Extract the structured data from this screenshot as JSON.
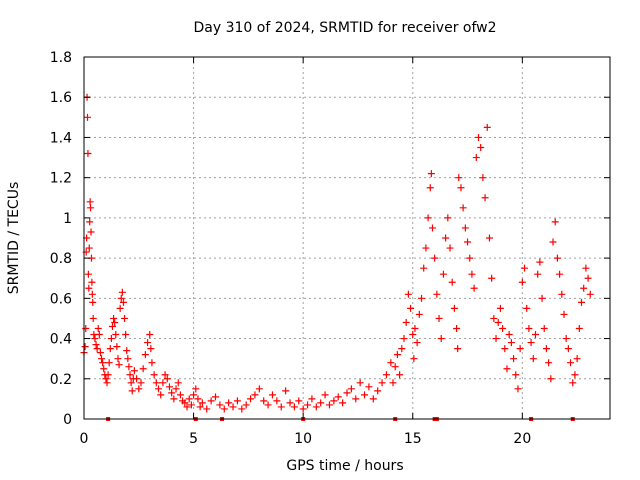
{
  "chart_data": {
    "type": "scatter",
    "title": "Day 310 of 2024, SRMTID for receiver ofw2",
    "xlabel": "GPS time / hours",
    "ylabel": "SRMTID / TECUs",
    "xlim": [
      0,
      24
    ],
    "ylim": [
      0,
      1.8
    ],
    "x_ticks": [
      0,
      5,
      10,
      15,
      20
    ],
    "y_ticks": [
      0,
      0.2,
      0.4,
      0.6,
      0.8,
      1,
      1.2,
      1.4,
      1.6,
      1.8
    ],
    "x_tick_labels": [
      "0",
      "5",
      "10",
      "15",
      "20"
    ],
    "y_tick_labels": [
      "0",
      "0.2",
      "0.4",
      "0.6",
      "0.8",
      "1",
      "1.2",
      "1.4",
      "1.6",
      "1.8"
    ],
    "grid": true,
    "marker": "+",
    "series_color": "#ff0000",
    "series": [
      {
        "name": "SRMTID",
        "points": [
          [
            0.0,
            0.33
          ],
          [
            0.05,
            0.36
          ],
          [
            0.08,
            0.45
          ],
          [
            0.1,
            0.83
          ],
          [
            0.12,
            0.9
          ],
          [
            0.14,
            1.6
          ],
          [
            0.16,
            1.5
          ],
          [
            0.18,
            1.32
          ],
          [
            0.2,
            0.72
          ],
          [
            0.22,
            0.65
          ],
          [
            0.24,
            0.85
          ],
          [
            0.26,
            0.98
          ],
          [
            0.28,
            1.08
          ],
          [
            0.3,
            1.05
          ],
          [
            0.32,
            0.93
          ],
          [
            0.34,
            0.8
          ],
          [
            0.36,
            0.68
          ],
          [
            0.38,
            0.62
          ],
          [
            0.4,
            0.58
          ],
          [
            0.42,
            0.5
          ],
          [
            0.45,
            0.42
          ],
          [
            0.5,
            0.4
          ],
          [
            0.55,
            0.37
          ],
          [
            0.6,
            0.35
          ],
          [
            0.65,
            0.45
          ],
          [
            0.7,
            0.42
          ],
          [
            0.75,
            0.33
          ],
          [
            0.8,
            0.3
          ],
          [
            0.85,
            0.28
          ],
          [
            0.9,
            0.25
          ],
          [
            0.95,
            0.22
          ],
          [
            1.0,
            0.2
          ],
          [
            1.05,
            0.18
          ],
          [
            1.1,
            0.22
          ],
          [
            1.15,
            0.28
          ],
          [
            1.2,
            0.35
          ],
          [
            1.25,
            0.4
          ],
          [
            1.3,
            0.46
          ],
          [
            1.35,
            0.5
          ],
          [
            1.4,
            0.48
          ],
          [
            1.45,
            0.42
          ],
          [
            1.5,
            0.36
          ],
          [
            1.55,
            0.3
          ],
          [
            1.6,
            0.27
          ],
          [
            1.65,
            0.55
          ],
          [
            1.7,
            0.6
          ],
          [
            1.75,
            0.63
          ],
          [
            1.8,
            0.58
          ],
          [
            1.85,
            0.5
          ],
          [
            1.9,
            0.42
          ],
          [
            1.95,
            0.34
          ],
          [
            2.0,
            0.3
          ],
          [
            2.05,
            0.26
          ],
          [
            2.1,
            0.22
          ],
          [
            2.15,
            0.18
          ],
          [
            2.2,
            0.14
          ],
          [
            2.25,
            0.2
          ],
          [
            2.3,
            0.24
          ],
          [
            2.4,
            0.2
          ],
          [
            2.5,
            0.15
          ],
          [
            2.6,
            0.18
          ],
          [
            2.7,
            0.25
          ],
          [
            2.8,
            0.32
          ],
          [
            2.9,
            0.38
          ],
          [
            3.0,
            0.42
          ],
          [
            3.05,
            0.35
          ],
          [
            3.1,
            0.28
          ],
          [
            3.2,
            0.22
          ],
          [
            3.3,
            0.18
          ],
          [
            3.4,
            0.15
          ],
          [
            3.5,
            0.12
          ],
          [
            3.6,
            0.18
          ],
          [
            3.7,
            0.22
          ],
          [
            3.8,
            0.2
          ],
          [
            3.9,
            0.16
          ],
          [
            4.0,
            0.13
          ],
          [
            4.1,
            0.1
          ],
          [
            4.2,
            0.15
          ],
          [
            4.3,
            0.18
          ],
          [
            4.4,
            0.12
          ],
          [
            4.5,
            0.09
          ],
          [
            4.6,
            0.08
          ],
          [
            4.7,
            0.06
          ],
          [
            4.8,
            0.1
          ],
          [
            4.9,
            0.07
          ],
          [
            5.0,
            0.12
          ],
          [
            5.1,
            0.15
          ],
          [
            5.2,
            0.1
          ],
          [
            5.3,
            0.06
          ],
          [
            5.4,
            0.08
          ],
          [
            5.6,
            0.05
          ],
          [
            5.8,
            0.09
          ],
          [
            6.0,
            0.11
          ],
          [
            6.2,
            0.07
          ],
          [
            6.4,
            0.05
          ],
          [
            6.6,
            0.08
          ],
          [
            6.8,
            0.06
          ],
          [
            7.0,
            0.09
          ],
          [
            7.2,
            0.05
          ],
          [
            7.4,
            0.07
          ],
          [
            7.6,
            0.1
          ],
          [
            7.8,
            0.12
          ],
          [
            8.0,
            0.15
          ],
          [
            8.2,
            0.09
          ],
          [
            8.4,
            0.07
          ],
          [
            8.6,
            0.12
          ],
          [
            8.8,
            0.09
          ],
          [
            9.0,
            0.06
          ],
          [
            9.2,
            0.14
          ],
          [
            9.4,
            0.08
          ],
          [
            9.6,
            0.06
          ],
          [
            9.8,
            0.09
          ],
          [
            10.0,
            0.05
          ],
          [
            10.2,
            0.07
          ],
          [
            10.4,
            0.1
          ],
          [
            10.6,
            0.06
          ],
          [
            10.8,
            0.08
          ],
          [
            11.0,
            0.12
          ],
          [
            11.2,
            0.07
          ],
          [
            11.4,
            0.09
          ],
          [
            11.6,
            0.11
          ],
          [
            11.8,
            0.08
          ],
          [
            12.0,
            0.13
          ],
          [
            12.2,
            0.15
          ],
          [
            12.4,
            0.1
          ],
          [
            12.6,
            0.18
          ],
          [
            12.8,
            0.12
          ],
          [
            13.0,
            0.16
          ],
          [
            13.2,
            0.1
          ],
          [
            13.4,
            0.14
          ],
          [
            13.6,
            0.18
          ],
          [
            13.8,
            0.22
          ],
          [
            14.0,
            0.28
          ],
          [
            14.1,
            0.18
          ],
          [
            14.2,
            0.26
          ],
          [
            14.3,
            0.32
          ],
          [
            14.4,
            0.22
          ],
          [
            14.5,
            0.35
          ],
          [
            14.6,
            0.4
          ],
          [
            14.7,
            0.48
          ],
          [
            14.8,
            0.62
          ],
          [
            14.9,
            0.55
          ],
          [
            15.0,
            0.42
          ],
          [
            15.05,
            0.3
          ],
          [
            15.1,
            0.45
          ],
          [
            15.2,
            0.38
          ],
          [
            15.3,
            0.52
          ],
          [
            15.4,
            0.6
          ],
          [
            15.5,
            0.75
          ],
          [
            15.6,
            0.85
          ],
          [
            15.7,
            1.0
          ],
          [
            15.8,
            1.15
          ],
          [
            15.85,
            1.22
          ],
          [
            15.9,
            0.95
          ],
          [
            16.0,
            0.8
          ],
          [
            16.1,
            0.62
          ],
          [
            16.2,
            0.5
          ],
          [
            16.3,
            0.4
          ],
          [
            16.4,
            0.72
          ],
          [
            16.5,
            0.9
          ],
          [
            16.6,
            1.0
          ],
          [
            16.7,
            0.85
          ],
          [
            16.8,
            0.68
          ],
          [
            16.9,
            0.55
          ],
          [
            17.0,
            0.45
          ],
          [
            17.05,
            0.35
          ],
          [
            17.1,
            1.2
          ],
          [
            17.2,
            1.15
          ],
          [
            17.3,
            1.05
          ],
          [
            17.4,
            0.95
          ],
          [
            17.5,
            0.88
          ],
          [
            17.6,
            0.8
          ],
          [
            17.7,
            0.72
          ],
          [
            17.8,
            0.65
          ],
          [
            17.9,
            1.3
          ],
          [
            18.0,
            1.4
          ],
          [
            18.1,
            1.35
          ],
          [
            18.2,
            1.2
          ],
          [
            18.3,
            1.1
          ],
          [
            18.4,
            1.45
          ],
          [
            18.5,
            0.9
          ],
          [
            18.6,
            0.7
          ],
          [
            18.7,
            0.5
          ],
          [
            18.8,
            0.4
          ],
          [
            18.9,
            0.48
          ],
          [
            19.0,
            0.55
          ],
          [
            19.1,
            0.45
          ],
          [
            19.2,
            0.35
          ],
          [
            19.3,
            0.25
          ],
          [
            19.4,
            0.42
          ],
          [
            19.5,
            0.38
          ],
          [
            19.6,
            0.3
          ],
          [
            19.7,
            0.22
          ],
          [
            19.8,
            0.15
          ],
          [
            19.9,
            0.35
          ],
          [
            20.0,
            0.68
          ],
          [
            20.1,
            0.75
          ],
          [
            20.2,
            0.55
          ],
          [
            20.3,
            0.45
          ],
          [
            20.4,
            0.38
          ],
          [
            20.5,
            0.3
          ],
          [
            20.6,
            0.42
          ],
          [
            20.7,
            0.72
          ],
          [
            20.8,
            0.78
          ],
          [
            20.9,
            0.6
          ],
          [
            21.0,
            0.45
          ],
          [
            21.1,
            0.35
          ],
          [
            21.2,
            0.28
          ],
          [
            21.3,
            0.2
          ],
          [
            21.4,
            0.88
          ],
          [
            21.5,
            0.98
          ],
          [
            21.6,
            0.8
          ],
          [
            21.7,
            0.72
          ],
          [
            21.8,
            0.62
          ],
          [
            21.9,
            0.52
          ],
          [
            22.0,
            0.4
          ],
          [
            22.1,
            0.35
          ],
          [
            22.2,
            0.28
          ],
          [
            22.3,
            0.18
          ],
          [
            22.4,
            0.22
          ],
          [
            22.5,
            0.3
          ],
          [
            22.6,
            0.45
          ],
          [
            22.7,
            0.58
          ],
          [
            22.8,
            0.65
          ],
          [
            22.9,
            0.75
          ],
          [
            23.0,
            0.7
          ],
          [
            23.1,
            0.62
          ]
        ],
        "axis_points": [
          1.1,
          5.1,
          6.3,
          10.0,
          14.2,
          16.0,
          16.1,
          20.4,
          22.3
        ]
      }
    ]
  }
}
